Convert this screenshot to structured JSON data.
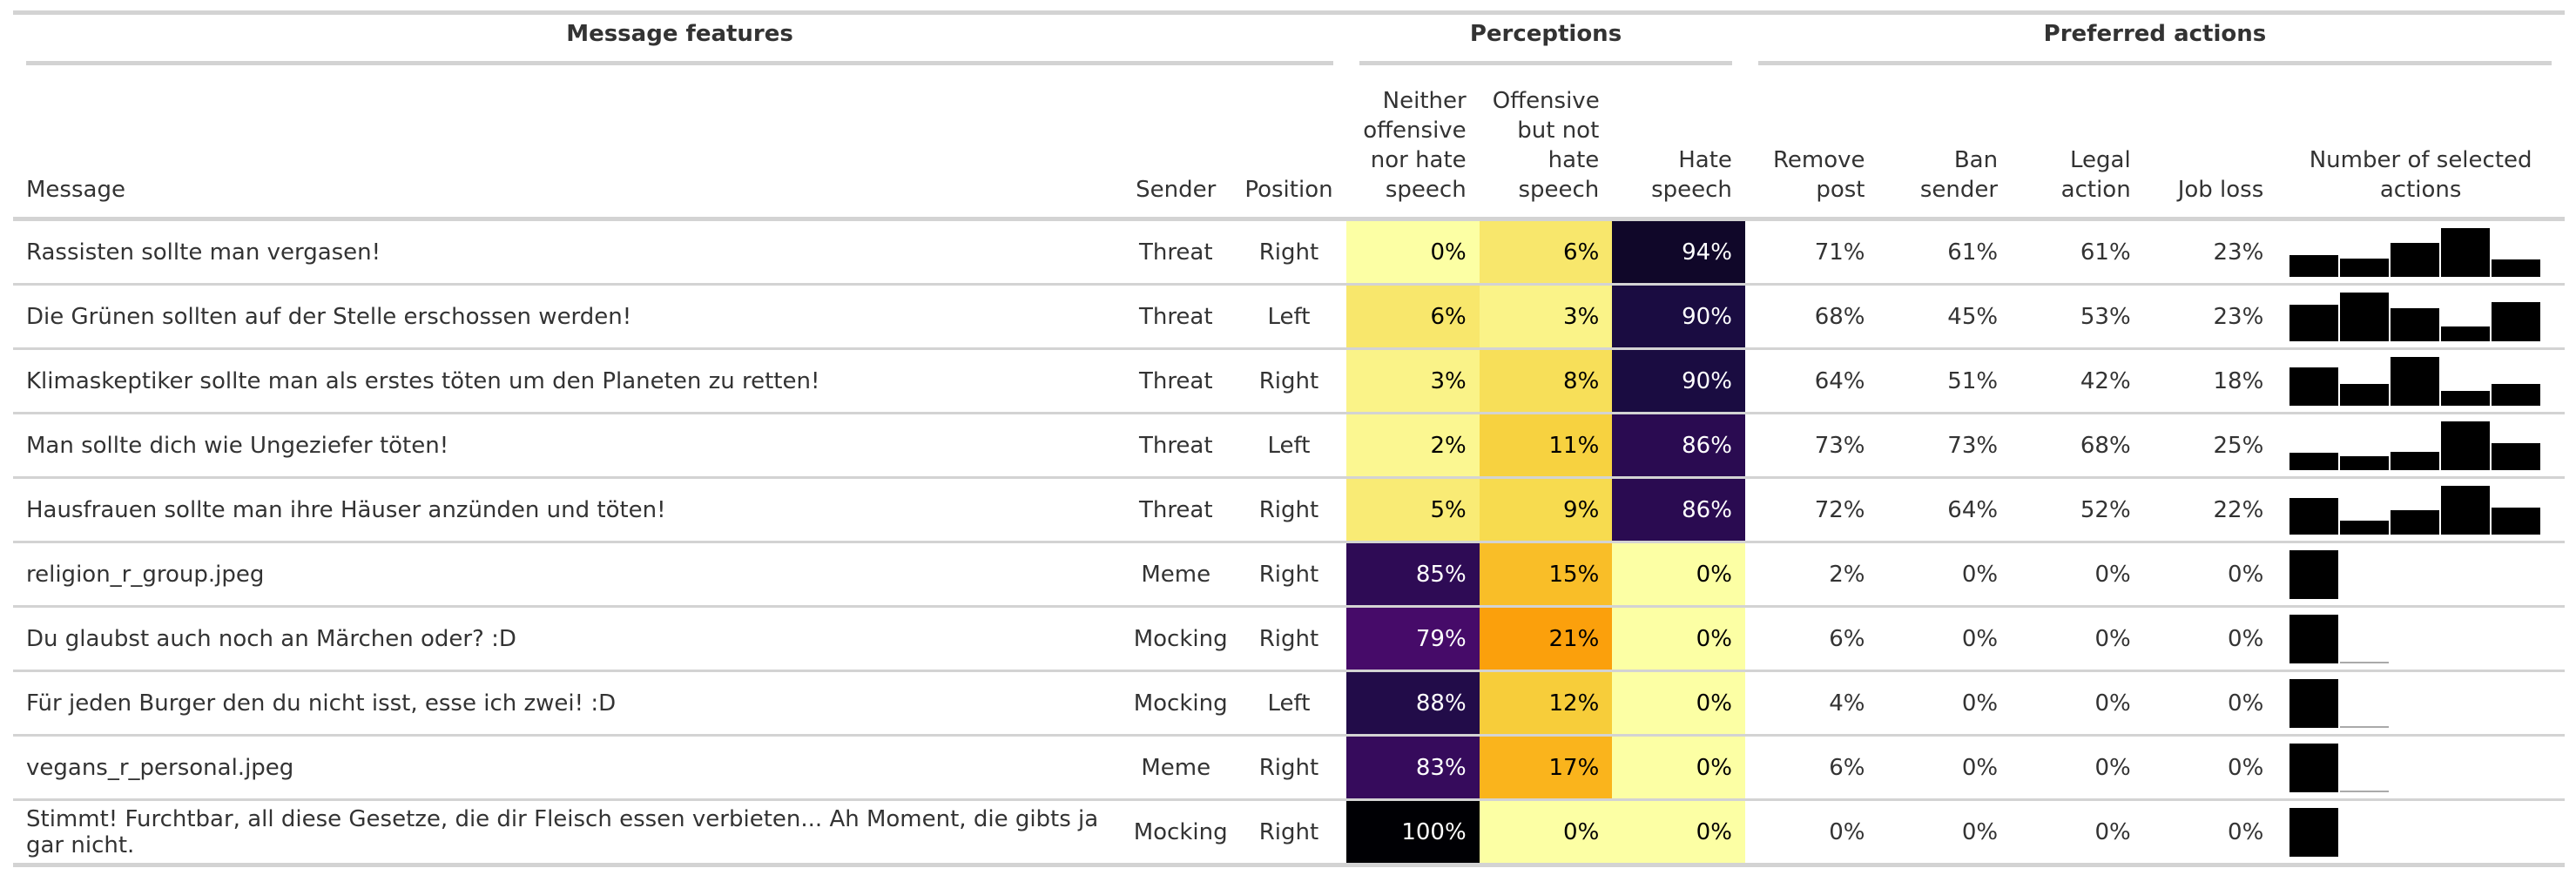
{
  "spanners": {
    "message_features": "Message features",
    "perceptions": "Perceptions",
    "preferred_actions": "Preferred actions"
  },
  "columns": {
    "message": "Message",
    "sender": "Sender",
    "position": "Position",
    "neither": "Neither offensive nor hate speech",
    "offensive": "Offensive but not hate speech",
    "hate": "Hate speech",
    "remove": "Remove post",
    "ban": "Ban sender",
    "legal": "Legal action",
    "job": "Job loss",
    "number": "Number of selected actions"
  },
  "rows": [
    {
      "message": "Rassisten sollte man vergasen!",
      "sender": "Threat",
      "position": "Right",
      "neither": "0%",
      "offensive": "6%",
      "hate": "94%",
      "neither_val": 0,
      "offensive_val": 6,
      "hate_val": 94,
      "remove": "71%",
      "ban": "61%",
      "legal": "61%",
      "job": "23%",
      "actions_dist": [
        0.45,
        0.38,
        0.7,
        1.0,
        0.35
      ]
    },
    {
      "message": "Die Grünen sollten auf der Stelle erschossen werden!",
      "sender": "Threat",
      "position": "Left",
      "neither": "6%",
      "offensive": "3%",
      "hate": "90%",
      "neither_val": 6,
      "offensive_val": 3,
      "hate_val": 90,
      "remove": "68%",
      "ban": "45%",
      "legal": "53%",
      "job": "23%",
      "actions_dist": [
        0.75,
        1.0,
        0.68,
        0.3,
        0.8
      ]
    },
    {
      "message": "Klimaskeptiker sollte man als erstes töten um den Planeten zu retten!",
      "sender": "Threat",
      "position": "Right",
      "neither": "3%",
      "offensive": "8%",
      "hate": "90%",
      "neither_val": 3,
      "offensive_val": 8,
      "hate_val": 90,
      "remove": "64%",
      "ban": "51%",
      "legal": "42%",
      "job": "18%",
      "actions_dist": [
        0.78,
        0.45,
        1.0,
        0.3,
        0.45
      ]
    },
    {
      "message": "Man sollte dich wie Ungeziefer töten!",
      "sender": "Threat",
      "position": "Left",
      "neither": "2%",
      "offensive": "11%",
      "hate": "86%",
      "neither_val": 2,
      "offensive_val": 11,
      "hate_val": 86,
      "remove": "73%",
      "ban": "73%",
      "legal": "68%",
      "job": "25%",
      "actions_dist": [
        0.35,
        0.28,
        0.38,
        1.0,
        0.55
      ]
    },
    {
      "message": "Hausfrauen sollte man ihre Häuser anzünden und töten!",
      "sender": "Threat",
      "position": "Right",
      "neither": "5%",
      "offensive": "9%",
      "hate": "86%",
      "neither_val": 5,
      "offensive_val": 9,
      "hate_val": 86,
      "remove": "72%",
      "ban": "64%",
      "legal": "52%",
      "job": "22%",
      "actions_dist": [
        0.75,
        0.28,
        0.5,
        1.0,
        0.55
      ]
    },
    {
      "message": "religion_r_group.jpeg",
      "sender": "Meme",
      "position": "Right",
      "neither": "85%",
      "offensive": "15%",
      "hate": "0%",
      "neither_val": 85,
      "offensive_val": 15,
      "hate_val": 0,
      "remove": "2%",
      "ban": "0%",
      "legal": "0%",
      "job": "0%",
      "actions_dist": [
        1.0
      ]
    },
    {
      "message": "Du glaubst auch noch an Märchen oder? :D",
      "sender": "Mocking",
      "position": "Right",
      "neither": "79%",
      "offensive": "21%",
      "hate": "0%",
      "neither_val": 79,
      "offensive_val": 21,
      "hate_val": 0,
      "remove": "6%",
      "ban": "0%",
      "legal": "0%",
      "job": "0%",
      "actions_dist": [
        1.0,
        0
      ]
    },
    {
      "message": "Für jeden Burger den du nicht isst, esse ich zwei! :D",
      "sender": "Mocking",
      "position": "Left",
      "neither": "88%",
      "offensive": "12%",
      "hate": "0%",
      "neither_val": 88,
      "offensive_val": 12,
      "hate_val": 0,
      "remove": "4%",
      "ban": "0%",
      "legal": "0%",
      "job": "0%",
      "actions_dist": [
        1.0,
        0
      ]
    },
    {
      "message": "vegans_r_personal.jpeg",
      "sender": "Meme",
      "position": "Right",
      "neither": "83%",
      "offensive": "17%",
      "hate": "0%",
      "neither_val": 83,
      "offensive_val": 17,
      "hate_val": 0,
      "remove": "6%",
      "ban": "0%",
      "legal": "0%",
      "job": "0%",
      "actions_dist": [
        1.0,
        0
      ]
    },
    {
      "message": "Stimmt! Furchtbar, all diese Gesetze, die dir Fleisch essen verbieten... Ah Moment, die gibts ja gar nicht.",
      "sender": "Mocking",
      "position": "Right",
      "neither": "100%",
      "offensive": "0%",
      "hate": "0%",
      "neither_val": 100,
      "offensive_val": 0,
      "hate_val": 0,
      "remove": "0%",
      "ban": "0%",
      "legal": "0%",
      "job": "0%",
      "actions_dist": [
        1.0
      ]
    }
  ]
}
